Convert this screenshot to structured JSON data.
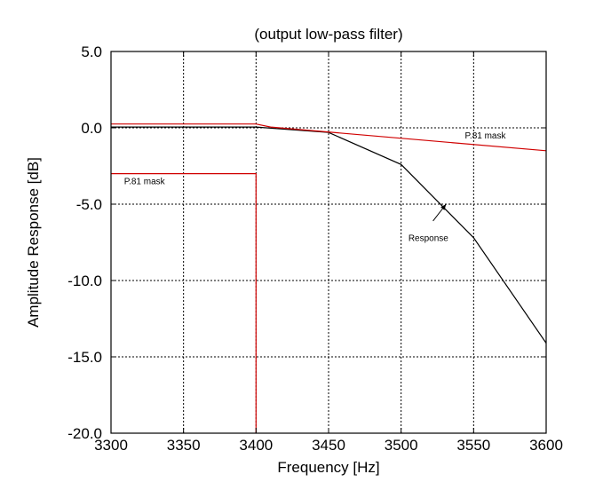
{
  "chart_data": {
    "type": "line",
    "title": "(output low-pass filter)",
    "xlabel": "Frequency [Hz]",
    "ylabel": "Amplitude Response [dB]",
    "xlim": [
      3300,
      3600
    ],
    "ylim": [
      -20,
      5
    ],
    "x_ticks": [
      3300,
      3350,
      3400,
      3450,
      3500,
      3550,
      3600
    ],
    "x_tick_labels": [
      "3300",
      "3350",
      "3400",
      "3450",
      "3500",
      "3550",
      "3600"
    ],
    "y_ticks": [
      5,
      0,
      -5,
      -10,
      -15,
      -20
    ],
    "y_tick_labels": [
      "5.0",
      "0.0",
      "-5.0",
      "-10.0",
      "-15.0",
      "-20.0"
    ],
    "grid": true,
    "series": [
      {
        "name": "Response",
        "color": "#000000",
        "x": [
          3300,
          3400,
          3450,
          3500,
          3550,
          3600
        ],
        "y": [
          0.05,
          0.05,
          -0.3,
          -2.4,
          -7.2,
          -14.1
        ]
      },
      {
        "name": "P.81 mask",
        "color": "#d00000",
        "x": [
          3300,
          3400,
          3410,
          3600
        ],
        "y": [
          0.25,
          0.25,
          0.05,
          -1.5
        ]
      },
      {
        "name": "P.81 mask",
        "color": "#d00000",
        "x": [
          3300,
          3400,
          3400
        ],
        "y": [
          -3.0,
          -3.0,
          -20
        ]
      }
    ],
    "annotations": [
      {
        "text": "P.81 mask",
        "x": 3544,
        "y": -0.7
      },
      {
        "text": "P.81 mask",
        "x": 3309,
        "y": -3.7
      },
      {
        "text": "Response",
        "x": 3505,
        "y": -7.4
      }
    ],
    "arrow": {
      "from_x": 3522,
      "from_y": -6.1,
      "to_x": 3531,
      "to_y": -5.0
    }
  }
}
